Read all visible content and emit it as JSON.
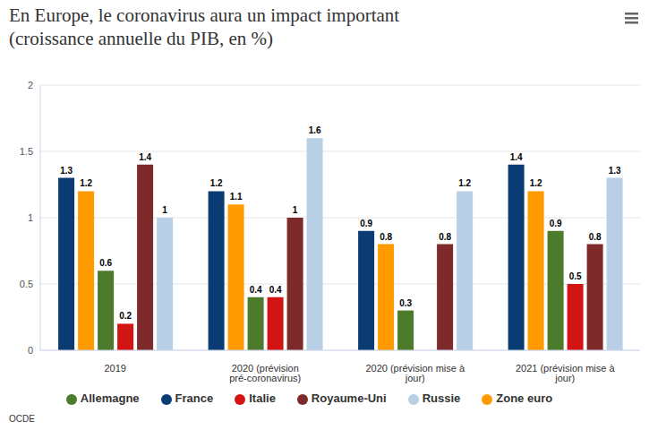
{
  "chart_data": {
    "type": "bar",
    "title": "En Europe, le coronavirus aura un impact important",
    "subtitle": "(croissance annuelle du PIB, en %)",
    "source": "OCDE",
    "categories": [
      "2019",
      "2020 (prévision pré-coronavirus)",
      "2020 (prévision mise à jour)",
      "2021 (prévision mise à jour)"
    ],
    "series": [
      {
        "name": "France",
        "color": "#0b3b73",
        "values": [
          1.3,
          1.2,
          0.9,
          1.4
        ]
      },
      {
        "name": "Zone euro",
        "color": "#ff9a00",
        "values": [
          1.2,
          1.1,
          0.8,
          1.2
        ]
      },
      {
        "name": "Allemagne",
        "color": "#4b7b2b",
        "values": [
          0.6,
          0.4,
          0.3,
          0.9
        ]
      },
      {
        "name": "Italie",
        "color": "#d21414",
        "values": [
          0.2,
          0.4,
          0,
          0.5
        ]
      },
      {
        "name": "Royaume-Uni",
        "color": "#7e2a2a",
        "values": [
          1.4,
          1,
          0.8,
          0.8
        ]
      },
      {
        "name": "Russie",
        "color": "#b9cfe6",
        "values": [
          1,
          1.6,
          1.2,
          1.3
        ]
      }
    ],
    "ylim": [
      0,
      2
    ],
    "yticks": [
      0,
      0.5,
      1,
      1.5,
      2
    ],
    "grid": true,
    "legend": "bottom",
    "data_labels": true
  }
}
